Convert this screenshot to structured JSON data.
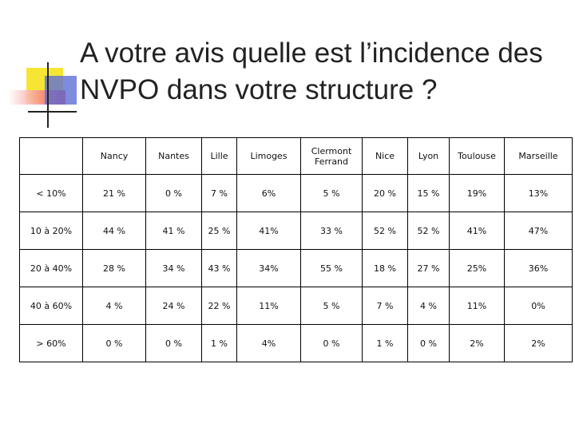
{
  "title": "A votre avis quelle est l’incidence des NVPO dans votre structure ?",
  "table": {
    "header": [
      "Nancy",
      "Nantes",
      "Lille",
      "Limoges",
      "Clermont Ferrand",
      "Nice",
      "Lyon",
      "Toulouse",
      "Marseille"
    ],
    "rows": [
      {
        "label": "< 10%",
        "values": [
          "21 %",
          "0 %",
          "7 %",
          "6%",
          "5 %",
          "20 %",
          "15 %",
          "19%",
          "13%"
        ]
      },
      {
        "label": "10 à 20%",
        "values": [
          "44 %",
          "41 %",
          "25 %",
          "41%",
          "33 %",
          "52 %",
          "52 %",
          "41%",
          "47%"
        ]
      },
      {
        "label": "20 à 40%",
        "values": [
          "28 %",
          "34 %",
          "43 %",
          "34%",
          "55 %",
          "18 %",
          "27 %",
          "25%",
          "36%"
        ]
      },
      {
        "label": "40 à 60%",
        "values": [
          "4 %",
          "24 %",
          "22 %",
          "11%",
          "5 %",
          "7 %",
          "4 %",
          "11%",
          "0%"
        ]
      },
      {
        "label": "> 60%",
        "values": [
          "0 %",
          "0 %",
          "1 %",
          "4%",
          "0 %",
          "1 %",
          "0 %",
          "2%",
          "2%"
        ]
      }
    ]
  }
}
